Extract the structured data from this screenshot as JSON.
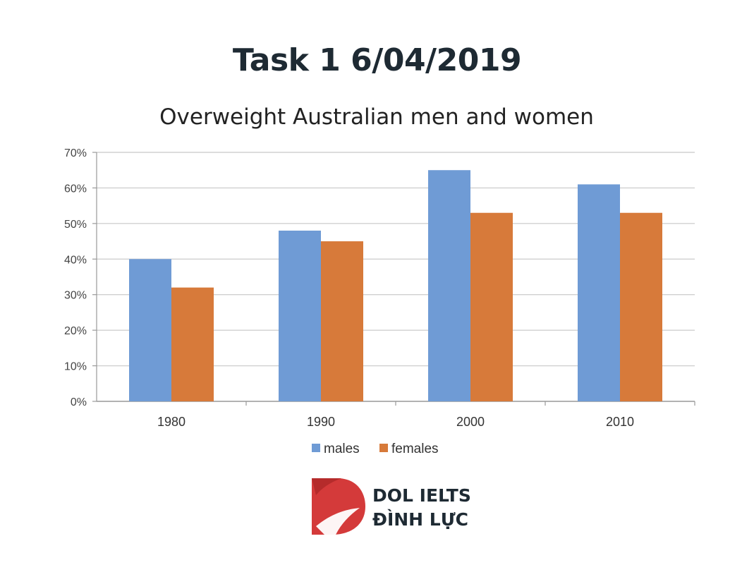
{
  "page": {
    "title": "Task 1 6/04/2019"
  },
  "chart_data": {
    "type": "bar",
    "title": "Overweight Australian men and women",
    "categories": [
      "1980",
      "1990",
      "2000",
      "2010"
    ],
    "series": [
      {
        "name": "males",
        "color": "#6f9bd5",
        "values": [
          40,
          48,
          65,
          61
        ]
      },
      {
        "name": "females",
        "color": "#d77a3a",
        "values": [
          32,
          45,
          53,
          53
        ]
      }
    ],
    "ylim": [
      0,
      70
    ],
    "yticks": [
      0,
      10,
      20,
      30,
      40,
      50,
      60,
      70
    ],
    "ytick_labels": [
      "0%",
      "10%",
      "20%",
      "30%",
      "40%",
      "50%",
      "60%",
      "70%"
    ],
    "grid": true,
    "legend": "bottom"
  },
  "brand": {
    "line1": "DOL IELTS",
    "line2": "ĐÌNH LỰC",
    "color": "#d43a3a"
  }
}
